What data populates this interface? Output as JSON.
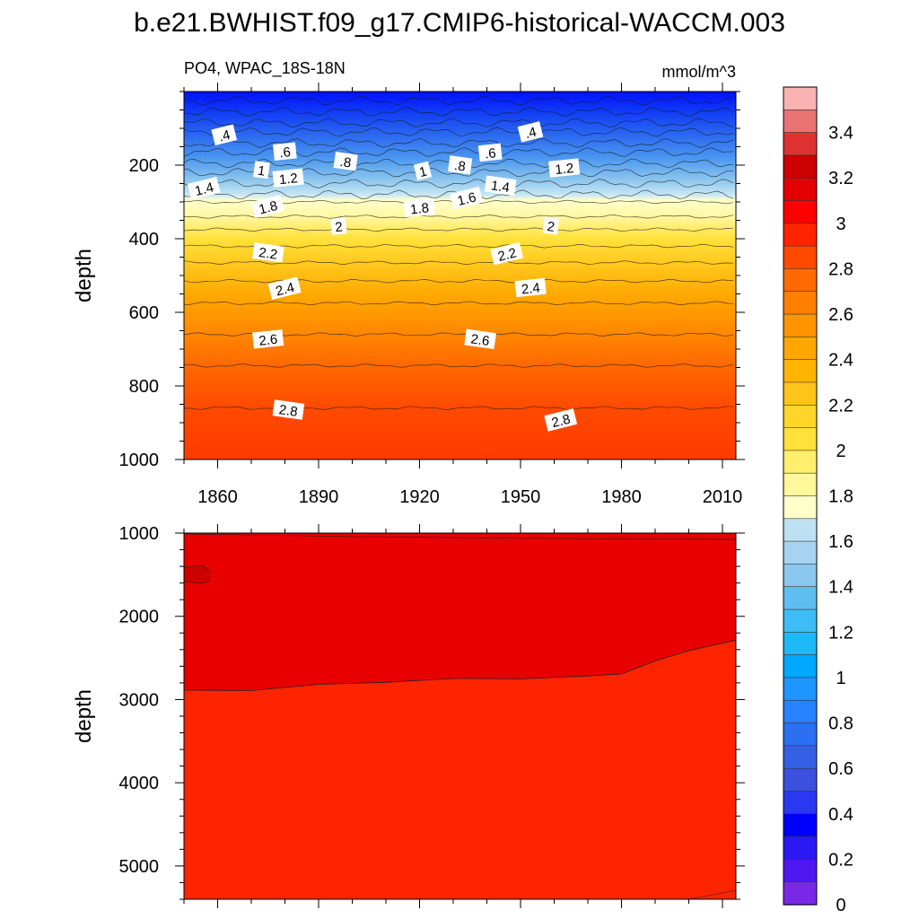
{
  "figure": {
    "title": "b.e21.BWHIST.f09_g17.CMIP6-historical-WACCM.003",
    "left_subtitle": "PO4, WPAC_18S-18N",
    "right_subtitle": "mmol/m^3"
  },
  "chart_data": [
    {
      "type": "contour",
      "panel": "upper",
      "title": "PO4, WPAC_18S-18N",
      "units": "mmol/m^3",
      "xlabel": "",
      "ylabel": "depth",
      "xlim": [
        1850,
        2014
      ],
      "ylim": [
        1000,
        0
      ],
      "x_ticks": [
        "1860",
        "1890",
        "1920",
        "1950",
        "1980",
        "2010"
      ],
      "x_tick_values": [
        1860,
        1890,
        1920,
        1950,
        1980,
        2010
      ],
      "y_ticks": [
        "200",
        "400",
        "600",
        "800",
        "1000"
      ],
      "y_tick_values": [
        200,
        400,
        600,
        800,
        1000
      ],
      "contour_depths": [
        25,
        55,
        85,
        110,
        140,
        165,
        195,
        220,
        250,
        280,
        300,
        340,
        375,
        420,
        465,
        515,
        575,
        660,
        745,
        860
      ],
      "contour_labels": [
        {
          "text": ".4",
          "year": 1862,
          "depth": 120
        },
        {
          "text": ".6",
          "year": 1880,
          "depth": 165
        },
        {
          "text": "1",
          "year": 1873,
          "depth": 215
        },
        {
          "text": "1.4",
          "year": 1856,
          "depth": 265
        },
        {
          "text": "1.2",
          "year": 1881,
          "depth": 237
        },
        {
          "text": ".8",
          "year": 1898,
          "depth": 192
        },
        {
          "text": "1.8",
          "year": 1875,
          "depth": 315
        },
        {
          "text": "2",
          "year": 1896,
          "depth": 368
        },
        {
          "text": "2.2",
          "year": 1875,
          "depth": 440
        },
        {
          "text": "2.4",
          "year": 1880,
          "depth": 537
        },
        {
          "text": "2.6",
          "year": 1875,
          "depth": 675
        },
        {
          "text": "2.8",
          "year": 1881,
          "depth": 867
        },
        {
          "text": "1",
          "year": 1921,
          "depth": 218
        },
        {
          "text": "1.8",
          "year": 1920,
          "depth": 318
        },
        {
          "text": ".8",
          "year": 1932,
          "depth": 202
        },
        {
          "text": "1.6",
          "year": 1934,
          "depth": 292
        },
        {
          "text": ".6",
          "year": 1941,
          "depth": 168
        },
        {
          "text": "1.4",
          "year": 1944,
          "depth": 258
        },
        {
          "text": ".4",
          "year": 1953,
          "depth": 112
        },
        {
          "text": "1.2",
          "year": 1963,
          "depth": 210
        },
        {
          "text": "2",
          "year": 1959,
          "depth": 367
        },
        {
          "text": "2.2",
          "year": 1946,
          "depth": 443
        },
        {
          "text": "2.4",
          "year": 1953,
          "depth": 535
        },
        {
          "text": "2.6",
          "year": 1938,
          "depth": 675
        },
        {
          "text": "2.8",
          "year": 1962,
          "depth": 895
        }
      ]
    },
    {
      "type": "contour",
      "panel": "lower",
      "xlabel": "",
      "ylabel": "depth",
      "xlim": [
        1850,
        2014
      ],
      "ylim": [
        5400,
        1000
      ],
      "y_ticks": [
        "1000",
        "2000",
        "3000",
        "4000",
        "5000"
      ],
      "y_tick_values": [
        1000,
        2000,
        3000,
        4000,
        5000
      ],
      "contour_3_0_boundary": {
        "years": [
          1850,
          1870,
          1890,
          1910,
          1930,
          1950,
          1970,
          1980,
          1990,
          2000,
          2014
        ],
        "depths": [
          2900,
          2880,
          2830,
          2780,
          2760,
          2740,
          2730,
          2680,
          2550,
          2400,
          2300
        ]
      }
    }
  ],
  "colorbar": {
    "labels": [
      "3.4",
      "3.2",
      "3",
      "2.8",
      "2.6",
      "2.4",
      "2.2",
      "2",
      "1.8",
      "1.6",
      "1.4",
      "1.2",
      "1",
      "0.8",
      "0.6",
      "0.4",
      "0.2",
      "0"
    ],
    "label_values": [
      3.4,
      3.2,
      3.0,
      2.8,
      2.6,
      2.4,
      2.2,
      2.0,
      1.8,
      1.6,
      1.4,
      1.2,
      1.0,
      0.8,
      0.6,
      0.4,
      0.2,
      0.0
    ],
    "colors_top_to_bottom": [
      "#FAB3B3",
      "#E97272",
      "#DE3232",
      "#CC0000",
      "#E40000",
      "#FF0000",
      "#FF2400",
      "#FF4A00",
      "#FF6A00",
      "#FF7F00",
      "#FF9300",
      "#FFA600",
      "#FFB400",
      "#FFC419",
      "#FFD52A",
      "#FFE13A",
      "#FFEF6E",
      "#FFF799",
      "#FFFFCC",
      "#BFE0F2",
      "#A6D4F0",
      "#8BC7EE",
      "#5FBEF0",
      "#3DBCF5",
      "#1FB8F7",
      "#00A8FF",
      "#1E96FF",
      "#2782FF",
      "#2B70F0",
      "#3560E6",
      "#3C50DE",
      "#2A38F2",
      "#0000FF",
      "#2A18F5",
      "#5018F0",
      "#7A28E8"
    ]
  }
}
